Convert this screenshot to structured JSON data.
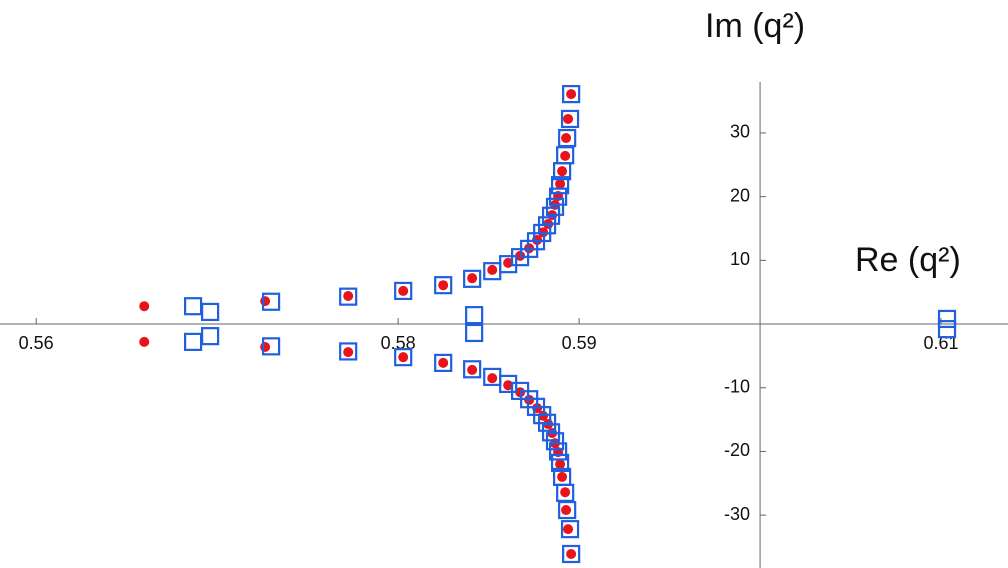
{
  "chart_data": {
    "type": "scatter",
    "x_label": "Re (q²)",
    "y_label": "Im (q²)",
    "xlim": [
      0.558,
      0.6137
    ],
    "ylim": [
      -38.3,
      38
    ],
    "axis_origin": [
      0.6,
      0
    ],
    "xticks": [
      0.56,
      0.58,
      0.59,
      0.61
    ],
    "yticks": [
      -30,
      -20,
      -10,
      10,
      20,
      30
    ],
    "series": [
      {
        "color": "#e8141c",
        "marker": "circle",
        "x": [
          0.56597,
          0.57265,
          0.57724,
          0.58028,
          0.58249,
          0.58409,
          0.5852,
          0.58608,
          0.58674,
          0.58724,
          0.58768,
          0.58801,
          0.58829,
          0.58851,
          0.58867,
          0.58884,
          0.58895,
          0.58906,
          0.58923,
          0.58928,
          0.58939,
          0.58956,
          0.56597,
          0.57265,
          0.57724,
          0.58028,
          0.58249,
          0.58409,
          0.5852,
          0.58608,
          0.58674,
          0.58724,
          0.58768,
          0.58801,
          0.58829,
          0.58851,
          0.58867,
          0.58884,
          0.58895,
          0.58906,
          0.58923,
          0.58928,
          0.58939,
          0.58956
        ],
        "values": [
          2.8,
          3.6,
          4.4,
          5.2,
          6.1,
          7.2,
          8.5,
          9.6,
          10.7,
          11.9,
          13.2,
          14.4,
          15.7,
          17.1,
          18.7,
          20.1,
          22.0,
          24.0,
          26.4,
          29.2,
          32.2,
          36.1,
          -2.8,
          -3.6,
          -4.4,
          -5.2,
          -6.1,
          -7.2,
          -8.5,
          -9.6,
          -10.7,
          -11.9,
          -13.2,
          -14.4,
          -15.7,
          -17.1,
          -18.7,
          -20.1,
          -22.0,
          -24.0,
          -26.4,
          -29.2,
          -32.2,
          -36.1
        ]
      },
      {
        "color": "#1f5fe0",
        "marker": "square",
        "x": [
          0.56867,
          0.56961,
          0.57298,
          0.57724,
          0.58028,
          0.58249,
          0.58409,
          0.5842,
          0.5852,
          0.58608,
          0.58674,
          0.58724,
          0.58762,
          0.58796,
          0.58823,
          0.58845,
          0.58867,
          0.58884,
          0.58895,
          0.58906,
          0.58923,
          0.58934,
          0.5895,
          0.58956,
          0.61033,
          0.56867,
          0.56961,
          0.57298,
          0.57724,
          0.58028,
          0.58249,
          0.58409,
          0.5842,
          0.5852,
          0.58608,
          0.58674,
          0.58724,
          0.58762,
          0.58796,
          0.58823,
          0.58845,
          0.58867,
          0.58884,
          0.58895,
          0.58906,
          0.58923,
          0.58934,
          0.5895,
          0.58956,
          0.61033
        ],
        "values": [
          2.8,
          1.9,
          3.5,
          4.3,
          5.2,
          6.1,
          7.1,
          1.4,
          8.3,
          9.4,
          10.5,
          11.8,
          13.0,
          14.3,
          15.5,
          17.0,
          18.4,
          20.0,
          21.8,
          24.0,
          26.5,
          29.2,
          32.2,
          36.1,
          0.8,
          -2.8,
          -1.9,
          -3.5,
          -4.3,
          -5.2,
          -6.1,
          -7.1,
          -1.4,
          -8.3,
          -9.4,
          -10.5,
          -11.8,
          -13.0,
          -14.3,
          -15.5,
          -17.0,
          -18.4,
          -20.0,
          -21.8,
          -24.0,
          -26.5,
          -29.2,
          -32.2,
          -36.1,
          -0.8
        ]
      }
    ]
  }
}
